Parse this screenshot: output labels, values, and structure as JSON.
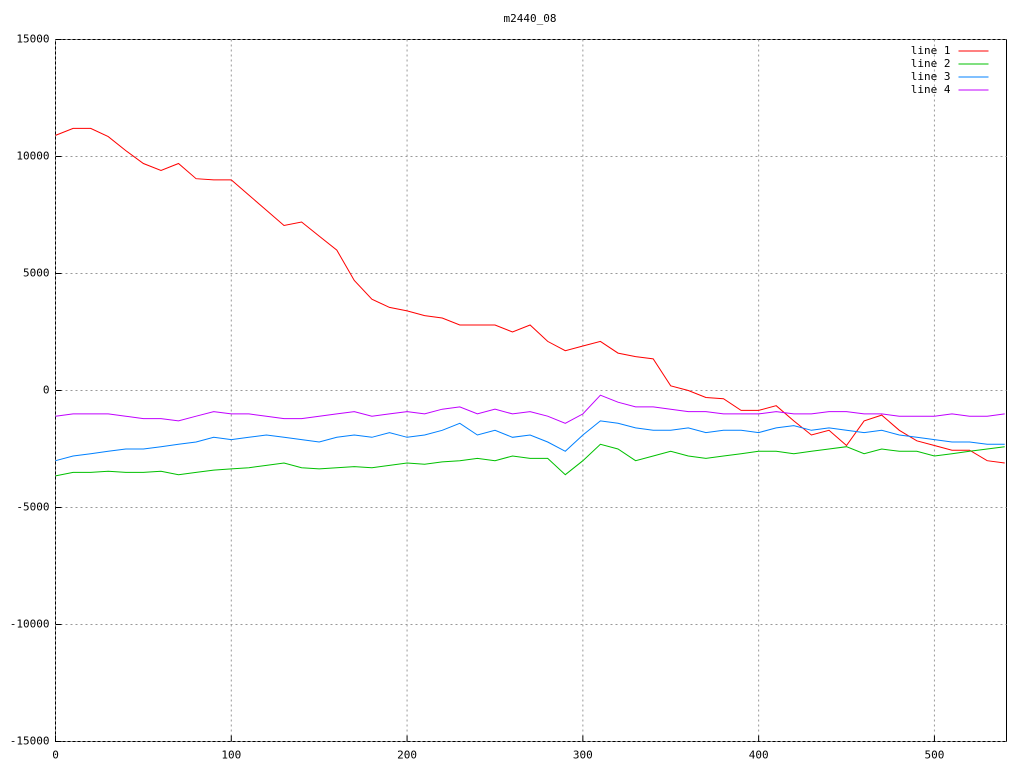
{
  "chart_data": {
    "type": "line",
    "title": "m2440_08",
    "x": [
      0,
      10,
      20,
      30,
      40,
      50,
      60,
      70,
      80,
      90,
      100,
      110,
      120,
      130,
      140,
      150,
      160,
      170,
      180,
      190,
      200,
      210,
      220,
      230,
      240,
      250,
      260,
      270,
      280,
      290,
      300,
      310,
      320,
      330,
      340,
      350,
      360,
      370,
      380,
      390,
      400,
      410,
      420,
      430,
      440,
      450,
      460,
      470,
      480,
      490,
      500,
      510,
      520,
      530,
      540
    ],
    "series": [
      {
        "name": "line 1",
        "color": "#ff0000",
        "values": [
          10900,
          11200,
          11200,
          10850,
          10250,
          9700,
          9400,
          9700,
          9050,
          9000,
          9000,
          8350,
          7700,
          7050,
          7200,
          6600,
          6000,
          4700,
          3900,
          3550,
          3400,
          3200,
          3100,
          2800,
          2800,
          2800,
          2500,
          2800,
          2100,
          1700,
          1900,
          2100,
          1600,
          1450,
          1350,
          200,
          0,
          -300,
          -350,
          -850,
          -850,
          -650,
          -1300,
          -1900,
          -1700,
          -2350,
          -1300,
          -1050,
          -1700,
          -2150,
          -2350,
          -2550,
          -2550,
          -3000,
          -3100
        ]
      },
      {
        "name": "line 2",
        "color": "#00c000",
        "values": [
          -3650,
          -3500,
          -3500,
          -3450,
          -3500,
          -3500,
          -3450,
          -3600,
          -3500,
          -3400,
          -3350,
          -3300,
          -3200,
          -3100,
          -3300,
          -3350,
          -3300,
          -3250,
          -3300,
          -3200,
          -3100,
          -3150,
          -3050,
          -3000,
          -2900,
          -3000,
          -2800,
          -2900,
          -2900,
          -3600,
          -3000,
          -2300,
          -2500,
          -3000,
          -2800,
          -2600,
          -2800,
          -2900,
          -2800,
          -2700,
          -2600,
          -2600,
          -2700,
          -2600,
          -2500,
          -2400,
          -2700,
          -2500,
          -2600,
          -2600,
          -2800,
          -2700,
          -2600,
          -2500,
          -2400
        ]
      },
      {
        "name": "line 3",
        "color": "#0080ff",
        "values": [
          -3000,
          -2800,
          -2700,
          -2600,
          -2500,
          -2500,
          -2400,
          -2300,
          -2200,
          -2000,
          -2100,
          -2000,
          -1900,
          -2000,
          -2100,
          -2200,
          -2000,
          -1900,
          -2000,
          -1800,
          -2000,
          -1900,
          -1700,
          -1400,
          -1900,
          -1700,
          -2000,
          -1900,
          -2200,
          -2600,
          -1900,
          -1300,
          -1400,
          -1600,
          -1700,
          -1700,
          -1600,
          -1800,
          -1700,
          -1700,
          -1800,
          -1600,
          -1500,
          -1700,
          -1600,
          -1700,
          -1800,
          -1700,
          -1900,
          -2000,
          -2100,
          -2200,
          -2200,
          -2300,
          -2300
        ]
      },
      {
        "name": "line 4",
        "color": "#c000ff",
        "values": [
          -1100,
          -1000,
          -1000,
          -1000,
          -1100,
          -1200,
          -1200,
          -1300,
          -1100,
          -900,
          -1000,
          -1000,
          -1100,
          -1200,
          -1200,
          -1100,
          -1000,
          -900,
          -1100,
          -1000,
          -900,
          -1000,
          -800,
          -700,
          -1000,
          -800,
          -1000,
          -900,
          -1100,
          -1400,
          -1000,
          -200,
          -500,
          -700,
          -700,
          -800,
          -900,
          -900,
          -1000,
          -1000,
          -1000,
          -900,
          -1000,
          -1000,
          -900,
          -900,
          -1000,
          -1000,
          -1100,
          -1100,
          -1100,
          -1000,
          -1100,
          -1100,
          -1000
        ]
      }
    ],
    "xlim": [
      0,
      541
    ],
    "ylim": [
      -15000,
      15000
    ],
    "xticks": [
      0,
      100,
      200,
      300,
      400,
      500
    ],
    "yticks": [
      -15000,
      -10000,
      -5000,
      0,
      5000,
      10000,
      15000
    ],
    "grid": true,
    "legend": "top-right"
  }
}
